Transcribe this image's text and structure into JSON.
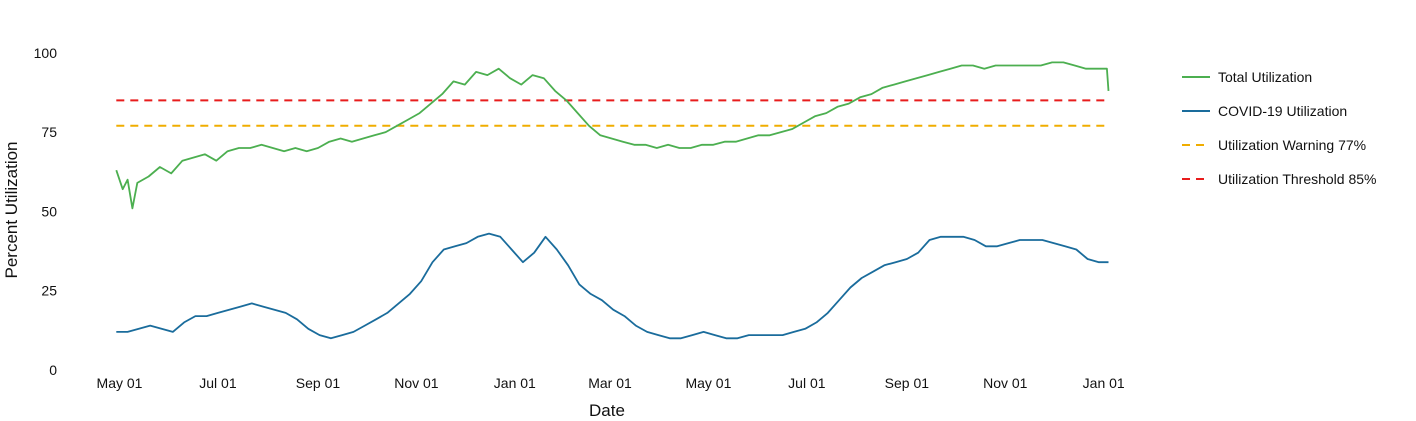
{
  "chart_data": {
    "type": "line",
    "title": "",
    "xlabel": "Date",
    "ylabel": "Percent Utilization",
    "x_range": [
      "2020-04-22",
      "2022-01-08"
    ],
    "ylim": [
      0,
      105
    ],
    "yticks": [
      0,
      25,
      50,
      75,
      100
    ],
    "xticks": [
      {
        "date": "2020-05-01",
        "label": "May 01"
      },
      {
        "date": "2020-07-01",
        "label": "Jul 01"
      },
      {
        "date": "2020-09-01",
        "label": "Sep 01"
      },
      {
        "date": "2020-11-01",
        "label": "Nov 01"
      },
      {
        "date": "2021-01-01",
        "label": "Jan 01"
      },
      {
        "date": "2021-03-01",
        "label": "Mar 01"
      },
      {
        "date": "2021-05-01",
        "label": "May 01"
      },
      {
        "date": "2021-07-01",
        "label": "Jul 01"
      },
      {
        "date": "2021-09-01",
        "label": "Sep 01"
      },
      {
        "date": "2021-11-01",
        "label": "Nov 01"
      },
      {
        "date": "2022-01-01",
        "label": "Jan 01"
      }
    ],
    "grid": false,
    "legend_position": "right",
    "series": [
      {
        "name": "Total Utilization",
        "color": "#4caf50",
        "style": "solid",
        "points": [
          [
            "2020-04-29",
            63
          ],
          [
            "2020-05-03",
            57
          ],
          [
            "2020-05-06",
            60
          ],
          [
            "2020-05-09",
            51
          ],
          [
            "2020-05-12",
            59
          ],
          [
            "2020-05-19",
            61
          ],
          [
            "2020-05-26",
            64
          ],
          [
            "2020-06-02",
            62
          ],
          [
            "2020-06-09",
            66
          ],
          [
            "2020-06-16",
            67
          ],
          [
            "2020-06-23",
            68
          ],
          [
            "2020-06-30",
            66
          ],
          [
            "2020-07-07",
            69
          ],
          [
            "2020-07-14",
            70
          ],
          [
            "2020-07-21",
            70
          ],
          [
            "2020-07-28",
            71
          ],
          [
            "2020-08-04",
            70
          ],
          [
            "2020-08-11",
            69
          ],
          [
            "2020-08-18",
            70
          ],
          [
            "2020-08-25",
            69
          ],
          [
            "2020-09-01",
            70
          ],
          [
            "2020-09-08",
            72
          ],
          [
            "2020-09-15",
            73
          ],
          [
            "2020-09-22",
            72
          ],
          [
            "2020-09-29",
            73
          ],
          [
            "2020-10-06",
            74
          ],
          [
            "2020-10-13",
            75
          ],
          [
            "2020-10-20",
            77
          ],
          [
            "2020-10-27",
            79
          ],
          [
            "2020-11-03",
            81
          ],
          [
            "2020-11-10",
            84
          ],
          [
            "2020-11-17",
            87
          ],
          [
            "2020-11-24",
            91
          ],
          [
            "2020-12-01",
            90
          ],
          [
            "2020-12-08",
            94
          ],
          [
            "2020-12-15",
            93
          ],
          [
            "2020-12-22",
            95
          ],
          [
            "2020-12-29",
            92
          ],
          [
            "2021-01-05",
            90
          ],
          [
            "2021-01-12",
            93
          ],
          [
            "2021-01-19",
            92
          ],
          [
            "2021-01-26",
            88
          ],
          [
            "2021-02-02",
            85
          ],
          [
            "2021-02-09",
            81
          ],
          [
            "2021-02-16",
            77
          ],
          [
            "2021-02-23",
            74
          ],
          [
            "2021-03-02",
            73
          ],
          [
            "2021-03-09",
            72
          ],
          [
            "2021-03-16",
            71
          ],
          [
            "2021-03-23",
            71
          ],
          [
            "2021-03-30",
            70
          ],
          [
            "2021-04-06",
            71
          ],
          [
            "2021-04-13",
            70
          ],
          [
            "2021-04-20",
            70
          ],
          [
            "2021-04-27",
            71
          ],
          [
            "2021-05-04",
            71
          ],
          [
            "2021-05-11",
            72
          ],
          [
            "2021-05-18",
            72
          ],
          [
            "2021-05-25",
            73
          ],
          [
            "2021-06-01",
            74
          ],
          [
            "2021-06-08",
            74
          ],
          [
            "2021-06-15",
            75
          ],
          [
            "2021-06-22",
            76
          ],
          [
            "2021-06-29",
            78
          ],
          [
            "2021-07-06",
            80
          ],
          [
            "2021-07-13",
            81
          ],
          [
            "2021-07-20",
            83
          ],
          [
            "2021-07-27",
            84
          ],
          [
            "2021-08-03",
            86
          ],
          [
            "2021-08-10",
            87
          ],
          [
            "2021-08-17",
            89
          ],
          [
            "2021-08-24",
            90
          ],
          [
            "2021-08-31",
            91
          ],
          [
            "2021-09-07",
            92
          ],
          [
            "2021-09-14",
            93
          ],
          [
            "2021-09-21",
            94
          ],
          [
            "2021-09-28",
            95
          ],
          [
            "2021-10-05",
            96
          ],
          [
            "2021-10-12",
            96
          ],
          [
            "2021-10-19",
            95
          ],
          [
            "2021-10-26",
            96
          ],
          [
            "2021-11-02",
            96
          ],
          [
            "2021-11-09",
            96
          ],
          [
            "2021-11-16",
            96
          ],
          [
            "2021-11-23",
            96
          ],
          [
            "2021-11-30",
            97
          ],
          [
            "2021-12-07",
            97
          ],
          [
            "2021-12-14",
            96
          ],
          [
            "2021-12-21",
            95
          ],
          [
            "2021-12-28",
            95
          ],
          [
            "2022-01-03",
            95
          ],
          [
            "2022-01-04",
            88
          ]
        ]
      },
      {
        "name": "COVID-19 Utilization",
        "color": "#1a6c9c",
        "style": "solid",
        "points": [
          [
            "2020-04-29",
            12
          ],
          [
            "2020-05-06",
            12
          ],
          [
            "2020-05-13",
            13
          ],
          [
            "2020-05-20",
            14
          ],
          [
            "2020-05-27",
            13
          ],
          [
            "2020-06-03",
            12
          ],
          [
            "2020-06-10",
            15
          ],
          [
            "2020-06-17",
            17
          ],
          [
            "2020-06-24",
            17
          ],
          [
            "2020-07-01",
            18
          ],
          [
            "2020-07-08",
            19
          ],
          [
            "2020-07-15",
            20
          ],
          [
            "2020-07-22",
            21
          ],
          [
            "2020-07-29",
            20
          ],
          [
            "2020-08-05",
            19
          ],
          [
            "2020-08-12",
            18
          ],
          [
            "2020-08-19",
            16
          ],
          [
            "2020-08-26",
            13
          ],
          [
            "2020-09-02",
            11
          ],
          [
            "2020-09-09",
            10
          ],
          [
            "2020-09-16",
            11
          ],
          [
            "2020-09-23",
            12
          ],
          [
            "2020-09-30",
            14
          ],
          [
            "2020-10-07",
            16
          ],
          [
            "2020-10-14",
            18
          ],
          [
            "2020-10-21",
            21
          ],
          [
            "2020-10-28",
            24
          ],
          [
            "2020-11-04",
            28
          ],
          [
            "2020-11-11",
            34
          ],
          [
            "2020-11-18",
            38
          ],
          [
            "2020-11-25",
            39
          ],
          [
            "2020-12-02",
            40
          ],
          [
            "2020-12-09",
            42
          ],
          [
            "2020-12-16",
            43
          ],
          [
            "2020-12-23",
            42
          ],
          [
            "2020-12-30",
            38
          ],
          [
            "2021-01-06",
            34
          ],
          [
            "2021-01-13",
            37
          ],
          [
            "2021-01-20",
            42
          ],
          [
            "2021-01-27",
            38
          ],
          [
            "2021-02-03",
            33
          ],
          [
            "2021-02-10",
            27
          ],
          [
            "2021-02-17",
            24
          ],
          [
            "2021-02-24",
            22
          ],
          [
            "2021-03-03",
            19
          ],
          [
            "2021-03-10",
            17
          ],
          [
            "2021-03-17",
            14
          ],
          [
            "2021-03-24",
            12
          ],
          [
            "2021-03-31",
            11
          ],
          [
            "2021-04-07",
            10
          ],
          [
            "2021-04-14",
            10
          ],
          [
            "2021-04-21",
            11
          ],
          [
            "2021-04-28",
            12
          ],
          [
            "2021-05-05",
            11
          ],
          [
            "2021-05-12",
            10
          ],
          [
            "2021-05-19",
            10
          ],
          [
            "2021-05-26",
            11
          ],
          [
            "2021-06-02",
            11
          ],
          [
            "2021-06-09",
            11
          ],
          [
            "2021-06-16",
            11
          ],
          [
            "2021-06-23",
            12
          ],
          [
            "2021-06-30",
            13
          ],
          [
            "2021-07-07",
            15
          ],
          [
            "2021-07-14",
            18
          ],
          [
            "2021-07-21",
            22
          ],
          [
            "2021-07-28",
            26
          ],
          [
            "2021-08-04",
            29
          ],
          [
            "2021-08-11",
            31
          ],
          [
            "2021-08-18",
            33
          ],
          [
            "2021-08-25",
            34
          ],
          [
            "2021-09-01",
            35
          ],
          [
            "2021-09-08",
            37
          ],
          [
            "2021-09-15",
            41
          ],
          [
            "2021-09-22",
            42
          ],
          [
            "2021-09-29",
            42
          ],
          [
            "2021-10-06",
            42
          ],
          [
            "2021-10-13",
            41
          ],
          [
            "2021-10-20",
            39
          ],
          [
            "2021-10-27",
            39
          ],
          [
            "2021-11-03",
            40
          ],
          [
            "2021-11-10",
            41
          ],
          [
            "2021-11-17",
            41
          ],
          [
            "2021-11-24",
            41
          ],
          [
            "2021-12-01",
            40
          ],
          [
            "2021-12-08",
            39
          ],
          [
            "2021-12-15",
            38
          ],
          [
            "2021-12-22",
            35
          ],
          [
            "2021-12-29",
            34
          ],
          [
            "2022-01-04",
            34
          ]
        ]
      },
      {
        "name": "Utilization Warning 77%",
        "color": "#f0ad00",
        "style": "dashed",
        "points": [
          [
            "2020-04-29",
            77
          ],
          [
            "2022-01-04",
            77
          ]
        ]
      },
      {
        "name": "Utilization Threshold 85%",
        "color": "#e81c1c",
        "style": "dashed",
        "points": [
          [
            "2020-04-29",
            85
          ],
          [
            "2022-01-04",
            85
          ]
        ]
      }
    ]
  }
}
